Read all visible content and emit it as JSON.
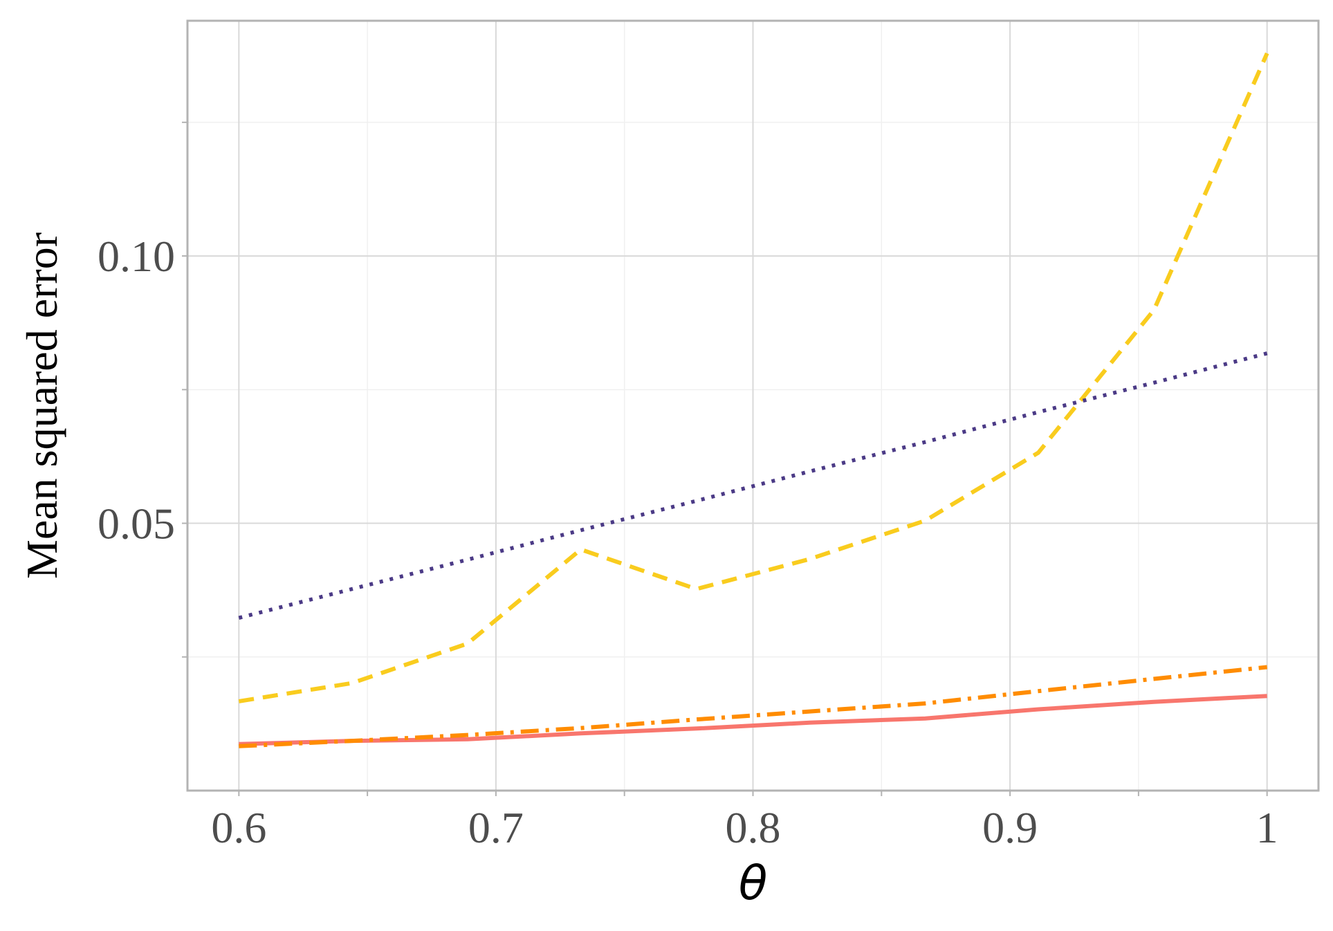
{
  "chart_data": {
    "type": "line",
    "xlabel": "θ",
    "ylabel": "Mean squared error",
    "xlim": [
      0.58,
      1.02
    ],
    "ylim": [
      0.0,
      0.144
    ],
    "x_ticks": [
      0.6,
      0.7,
      0.8,
      0.9,
      1.0
    ],
    "x_tick_labels": [
      "0.6",
      "0.7",
      "0.8",
      "0.9",
      "1"
    ],
    "x_minor_ticks": [
      0.65,
      0.75,
      0.85,
      0.95
    ],
    "y_ticks": [
      0.05,
      0.1
    ],
    "y_tick_labels": [
      "0.05",
      "0.10"
    ],
    "y_minor_ticks": [
      0.025,
      0.075,
      0.125
    ],
    "grid": true,
    "legend": "none",
    "series": [
      {
        "color": "#F8766D",
        "style": "solid",
        "x": [
          0.6,
          0.644,
          0.689,
          0.733,
          0.778,
          0.822,
          0.867,
          0.911,
          0.956,
          1.0
        ],
        "y": [
          0.0087,
          0.0093,
          0.0096,
          0.0107,
          0.0116,
          0.0127,
          0.0135,
          0.0152,
          0.0166,
          0.0177
        ]
      },
      {
        "color": "#FF8C00",
        "style": "dashdot",
        "x": [
          0.6,
          0.644,
          0.689,
          0.733,
          0.778,
          0.822,
          0.867,
          0.911,
          0.956,
          1.0
        ],
        "y": [
          0.0083,
          0.0093,
          0.0104,
          0.0117,
          0.0133,
          0.0148,
          0.0163,
          0.0186,
          0.0209,
          0.0231
        ]
      },
      {
        "color": "#F9CC1E",
        "style": "dashed",
        "x": [
          0.6,
          0.644,
          0.689,
          0.733,
          0.778,
          0.822,
          0.867,
          0.911,
          0.956,
          1.0
        ],
        "y": [
          0.0167,
          0.0201,
          0.0275,
          0.0451,
          0.0377,
          0.0433,
          0.0505,
          0.0632,
          0.0899,
          0.1379
        ]
      },
      {
        "color": "#4B3A86",
        "style": "dotted",
        "x": [
          0.6,
          0.644,
          0.689,
          0.733,
          0.778,
          0.822,
          0.867,
          0.911,
          0.956,
          1.0
        ],
        "y": [
          0.0323,
          0.0377,
          0.0432,
          0.0487,
          0.0542,
          0.0597,
          0.0652,
          0.0708,
          0.0763,
          0.0818
        ]
      }
    ],
    "colors": {
      "panel_border": "#b3b3b3",
      "grid_major": "#d9d9d9",
      "grid_minor": "#f0f0f0",
      "tick_text": "#4d4d4d"
    }
  }
}
